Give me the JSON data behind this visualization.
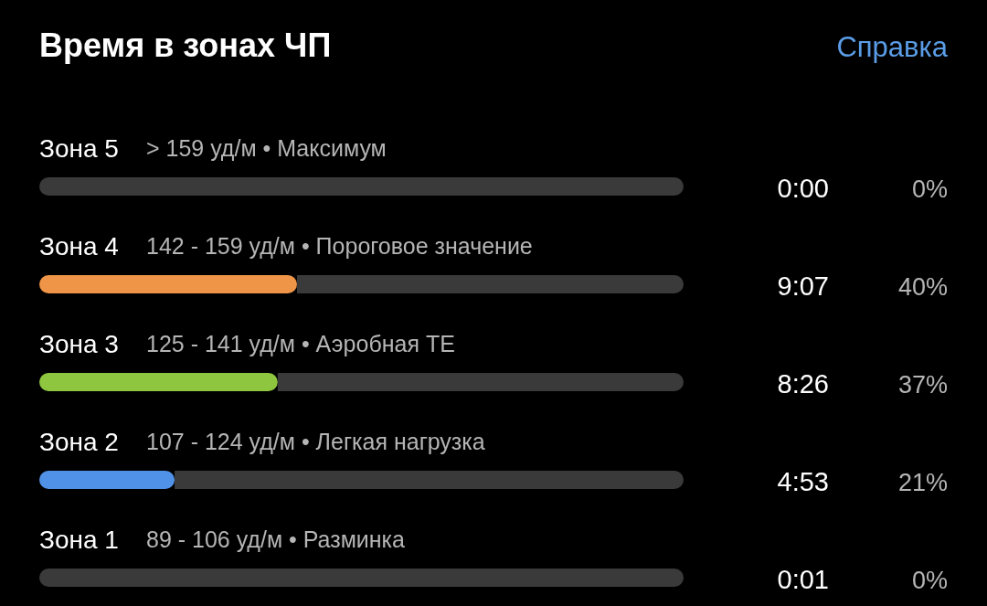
{
  "chart_data": {
    "type": "bar",
    "orientation": "horizontal",
    "stacked": true,
    "title": "Время в зонах ЧП",
    "categories": [
      "Зона 5",
      "Зона 4",
      "Зона 3",
      "Зона 2",
      "Зона 1"
    ],
    "series": [
      {
        "colors": [
          "#e0504a",
          "#ee9548",
          "#8fc640",
          "#5092e8",
          "#9a9a9a"
        ],
        "values": [
          0,
          40,
          37,
          21,
          0
        ],
        "value_labels": [
          "0%",
          "40%",
          "37%",
          "21%",
          "0%"
        ]
      },
      {
        "color": "#3a3a3a",
        "values": [
          100,
          60,
          63,
          79,
          100
        ]
      }
    ],
    "xlim": [
      0,
      100
    ],
    "annotations": [
      "Справка",
      "> 159 уд/м • Максимум",
      "0:00",
      "142 - 159 уд/м • Пороговое значение",
      "9:07",
      "125 - 141 уд/м • Аэробная TE",
      "8:26",
      "107 - 124 уд/м • Легкая нагрузка",
      "4:53",
      "89 - 106 уд/м • Разминка",
      "0:01"
    ]
  }
}
